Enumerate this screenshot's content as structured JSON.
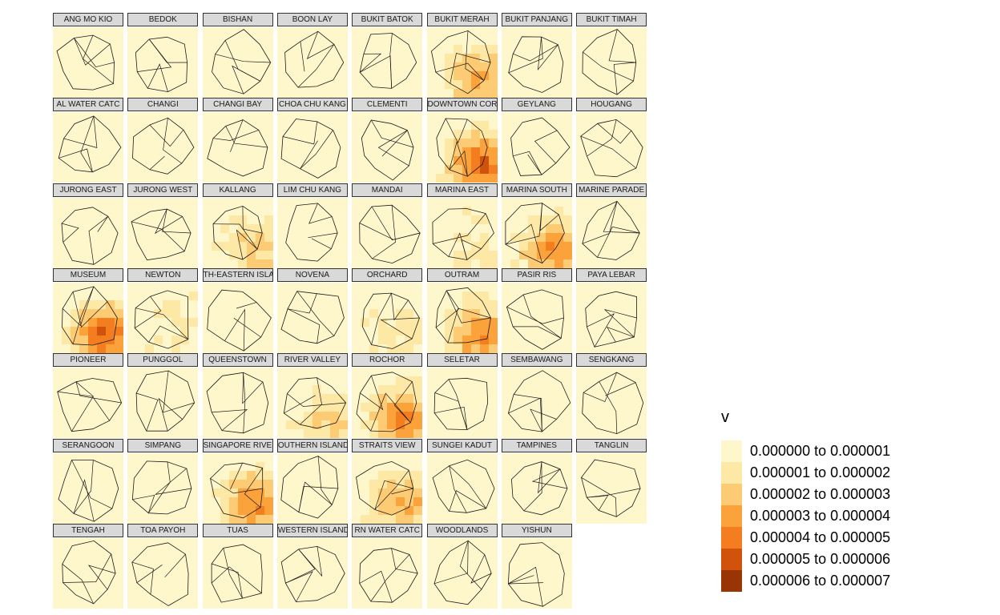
{
  "legend": {
    "title": "v",
    "bins": [
      {
        "label": "0.000000 to 0.000001",
        "color": "#fff7cc"
      },
      {
        "label": "0.000001 to 0.000002",
        "color": "#fee8a6"
      },
      {
        "label": "0.000002 to 0.000003",
        "color": "#fecb75"
      },
      {
        "label": "0.000003 to 0.000004",
        "color": "#fca23b"
      },
      {
        "label": "0.000004 to 0.000005",
        "color": "#f47d20"
      },
      {
        "label": "0.000005 to 0.000006",
        "color": "#d1530b"
      },
      {
        "label": "0.000006 to 0.000007",
        "color": "#993404"
      }
    ]
  },
  "panels": [
    {
      "name": "ANG MO KIO",
      "level": 0
    },
    {
      "name": "BEDOK",
      "level": 0
    },
    {
      "name": "BISHAN",
      "level": 0
    },
    {
      "name": "BOON LAY",
      "level": 0
    },
    {
      "name": "BUKIT BATOK",
      "level": 0
    },
    {
      "name": "BUKIT MERAH",
      "level": 3
    },
    {
      "name": "BUKIT PANJANG",
      "level": 0
    },
    {
      "name": "BUKIT TIMAH",
      "level": 0
    },
    {
      "name": "AL WATER CATC",
      "level": 0
    },
    {
      "name": "CHANGI",
      "level": 0
    },
    {
      "name": "CHANGI BAY",
      "level": 0
    },
    {
      "name": "CHOA CHU KANG",
      "level": 0
    },
    {
      "name": "CLEMENTI",
      "level": 0
    },
    {
      "name": "DOWNTOWN CORE",
      "level": 5
    },
    {
      "name": "GEYLANG",
      "level": 0
    },
    {
      "name": "HOUGANG",
      "level": 0
    },
    {
      "name": "JURONG EAST",
      "level": 0
    },
    {
      "name": "JURONG WEST",
      "level": 0
    },
    {
      "name": "KALLANG",
      "level": 2
    },
    {
      "name": "LIM CHU KANG",
      "level": 0
    },
    {
      "name": "MANDAI",
      "level": 0
    },
    {
      "name": "MARINA EAST",
      "level": 1
    },
    {
      "name": "MARINA SOUTH",
      "level": 4
    },
    {
      "name": "MARINE PARADE",
      "level": 0
    },
    {
      "name": "MUSEUM",
      "level": 5
    },
    {
      "name": "NEWTON",
      "level": 1
    },
    {
      "name": "TH-EASTERN ISLA",
      "level": 0
    },
    {
      "name": "NOVENA",
      "level": 0
    },
    {
      "name": "ORCHARD",
      "level": 1
    },
    {
      "name": "OUTRAM",
      "level": 4
    },
    {
      "name": "PASIR RIS",
      "level": 0
    },
    {
      "name": "PAYA LEBAR",
      "level": 0
    },
    {
      "name": "PIONEER",
      "level": 0
    },
    {
      "name": "PUNGGOL",
      "level": 0
    },
    {
      "name": "QUEENSTOWN",
      "level": 0
    },
    {
      "name": "RIVER VALLEY",
      "level": 2
    },
    {
      "name": "ROCHOR",
      "level": 4
    },
    {
      "name": "SELETAR",
      "level": 0
    },
    {
      "name": "SEMBAWANG",
      "level": 0
    },
    {
      "name": "SENGKANG",
      "level": 0
    },
    {
      "name": "SERANGOON",
      "level": 0
    },
    {
      "name": "SIMPANG",
      "level": 0
    },
    {
      "name": "SINGAPORE RIVER",
      "level": 4
    },
    {
      "name": "OUTHERN ISLAND",
      "level": 0
    },
    {
      "name": "STRAITS VIEW",
      "level": 3
    },
    {
      "name": "SUNGEI KADUT",
      "level": 0
    },
    {
      "name": "TAMPINES",
      "level": 0
    },
    {
      "name": "TANGLIN",
      "level": 0
    },
    {
      "name": "TENGAH",
      "level": 0
    },
    {
      "name": "TOA PAYOH",
      "level": 0
    },
    {
      "name": "TUAS",
      "level": 0
    },
    {
      "name": "WESTERN ISLANDS",
      "level": 0
    },
    {
      "name": "RN WATER CATC",
      "level": 0
    },
    {
      "name": "WOODLANDS",
      "level": 0
    },
    {
      "name": "YISHUN",
      "level": 0
    }
  ]
}
